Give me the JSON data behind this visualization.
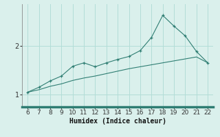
{
  "x": [
    6,
    7,
    8,
    9,
    10,
    11,
    12,
    13,
    14,
    15,
    16,
    17,
    18,
    19,
    20,
    21,
    22
  ],
  "y_upper": [
    1.05,
    1.15,
    1.28,
    1.38,
    1.58,
    1.65,
    1.57,
    1.65,
    1.72,
    1.78,
    1.9,
    2.17,
    2.62,
    2.4,
    2.2,
    1.88,
    1.65
  ],
  "y_lower": [
    1.05,
    1.1,
    1.17,
    1.22,
    1.29,
    1.34,
    1.38,
    1.43,
    1.48,
    1.53,
    1.57,
    1.61,
    1.65,
    1.69,
    1.73,
    1.77,
    1.65
  ],
  "bg_color": "#daf0ec",
  "line_color": "#2e7d72",
  "grid_color": "#b2ddd7",
  "xlabel": "Humidex (Indice chaleur)",
  "yticks": [
    1,
    2
  ],
  "ylim": [
    0.75,
    2.85
  ],
  "xlim": [
    5.5,
    22.5
  ],
  "xticks": [
    6,
    7,
    8,
    9,
    10,
    11,
    12,
    13,
    14,
    15,
    16,
    17,
    18,
    19,
    20,
    21,
    22
  ]
}
